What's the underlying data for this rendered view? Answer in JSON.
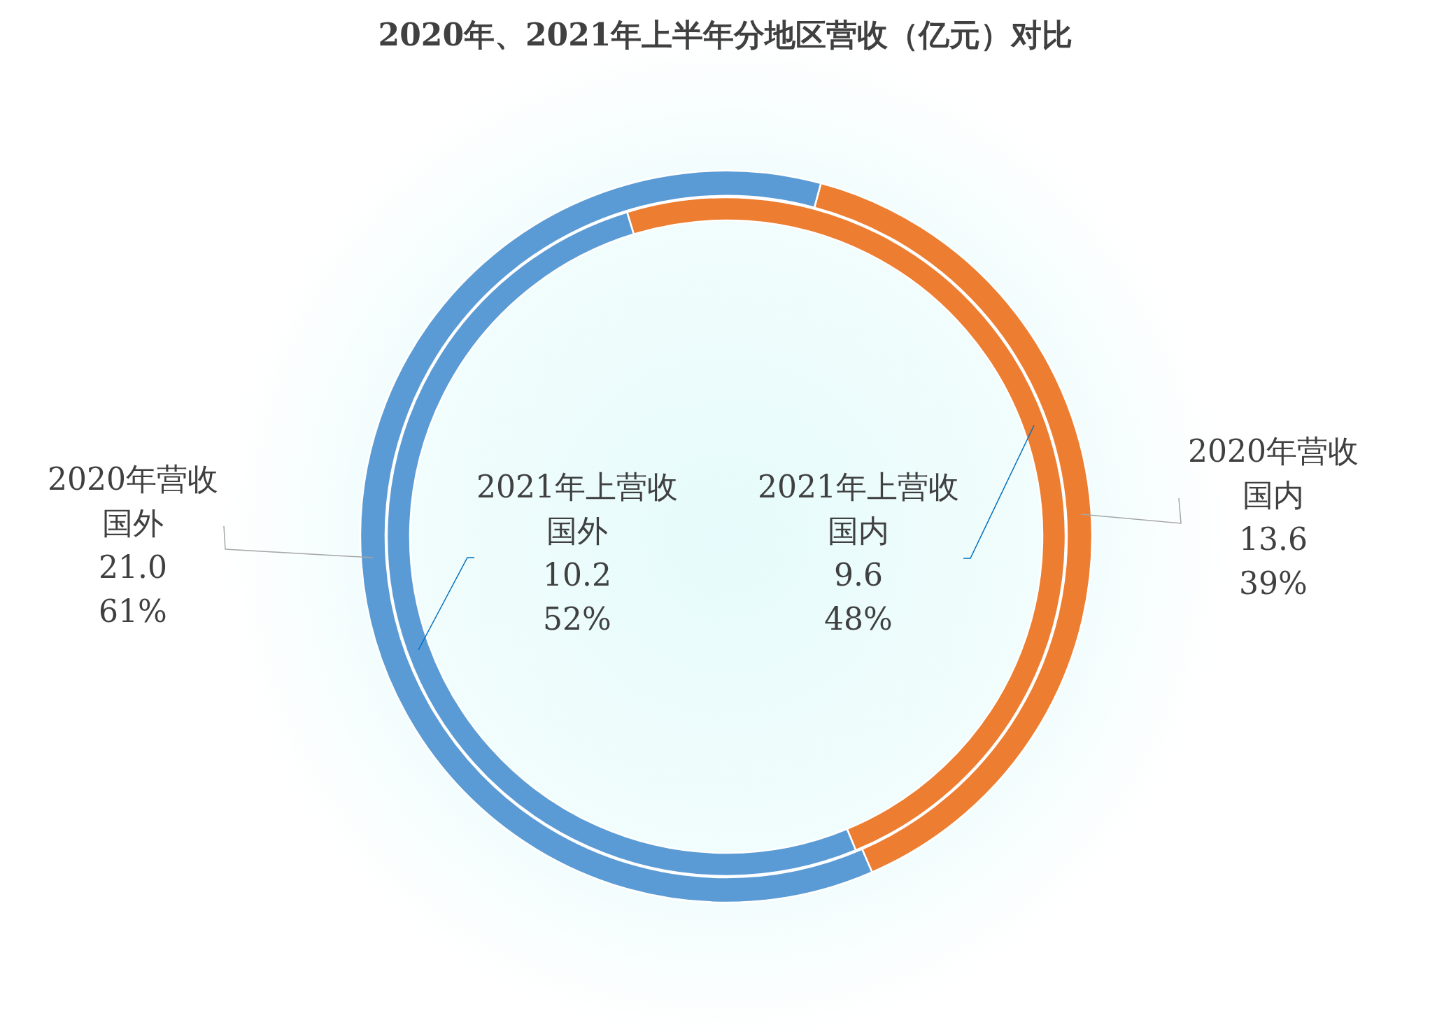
{
  "chart_data": {
    "type": "donut",
    "title": "2020年、2021年上半年分地区营收（亿元）对比",
    "categories": [
      "国内",
      "国外"
    ],
    "colors": [
      "#ed7d31",
      "#5b9bd5"
    ],
    "data_labels": true,
    "series": [
      {
        "name": "2020年营收",
        "values": [
          13.6,
          21.0
        ],
        "value_labels": [
          "13.6\n39%",
          "21.0\n61%"
        ]
      },
      {
        "name": "2021年上营收",
        "values": [
          9.6,
          10.2
        ],
        "value_labels": [
          "9.6\n48%",
          "10.2\n52%"
        ]
      }
    ]
  }
}
